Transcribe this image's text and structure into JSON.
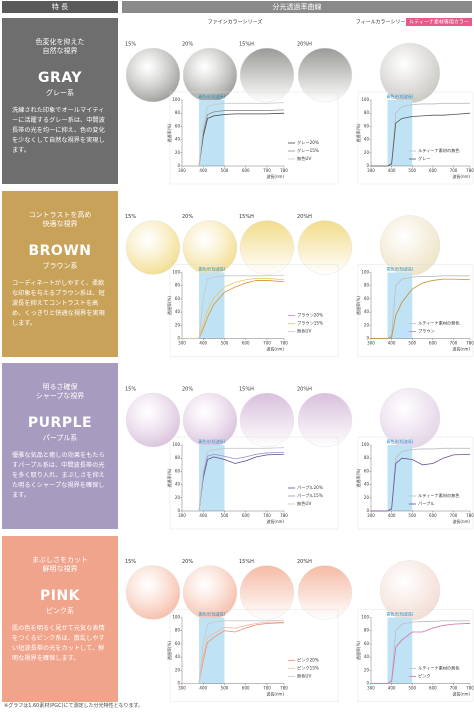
{
  "header": {
    "features": "特 長",
    "curves": "分光透過率曲線"
  },
  "series_labels": {
    "fine": "ファインカラーシリーズ",
    "feel": "フィールカラーシリーズ",
    "badge": "ルティーナ素材専用カラー"
  },
  "lens_labels": [
    "15%",
    "20%",
    "15%H",
    "20%H"
  ],
  "axes": {
    "xlim": [
      300,
      780
    ],
    "ylim": [
      0,
      100
    ],
    "xticks": [
      300,
      400,
      500,
      600,
      700,
      780
    ],
    "yticks": [
      0,
      20,
      40,
      60,
      80,
      100
    ],
    "band": [
      380,
      500
    ],
    "band_label": "青色光(短波長)",
    "ylabel": "透過率(%)",
    "xlabel": "波長(nm)"
  },
  "x": [
    300,
    380,
    400,
    420,
    450,
    500,
    550,
    600,
    650,
    700,
    780
  ],
  "sections": [
    {
      "color": "#6e6e6e",
      "lens_color": "#9a9a96",
      "feel_lens_color": "#c9c7c2",
      "headline": [
        "色変化を抑えた",
        "自然な視界"
      ],
      "name": "GRAY",
      "name_jp": "グレー系",
      "description": "洗練された印象でオールマイティーに活躍するグレー系は、中間波長帯の光を均一に抑え、色の変化を少なくして自然な視界を実現します。",
      "fine": {
        "series": [
          {
            "name": "グレー20%",
            "color": "#444444",
            "values": [
              0,
              0,
              45,
              72,
              76,
              78,
              79,
              79,
              79,
              79,
              80
            ]
          },
          {
            "name": "グレー15%",
            "color": "#8c8c8c",
            "values": [
              0,
              0,
              50,
              78,
              82,
              84,
              84,
              84,
              84,
              84,
              85
            ]
          },
          {
            "name": "無色UV",
            "color": "#c8c8c8",
            "values": [
              0,
              0,
              60,
              90,
              93,
              95,
              95,
              95,
              95,
              95,
              96
            ]
          }
        ]
      },
      "feel": {
        "series": [
          {
            "name": "ルティーナ素材の無色",
            "color": "#bdbdbd",
            "values": [
              0,
              0,
              5,
              80,
              90,
              93,
              94,
              94,
              95,
              95,
              95
            ]
          },
          {
            "name": "グレー",
            "color": "#555555",
            "values": [
              0,
              0,
              3,
              65,
              72,
              75,
              76,
              77,
              77,
              78,
              80
            ]
          }
        ]
      }
    },
    {
      "color": "#c9a25a",
      "lens_color": "#f2dc8a",
      "feel_lens_color": "#eee3c6",
      "headline": [
        "コントラストを高め",
        "快適な視界"
      ],
      "name": "BROWN",
      "name_jp": "ブラウン系",
      "description": "コーディネートがしやすく、柔軟な印象を与えるブラウン系は、短波長を抑えてコントラストを高め、くっきりと快適な視界を実現します。",
      "fine": {
        "series": [
          {
            "name": "ブラウン20%",
            "color": "#d8952a",
            "values": [
              0,
              0,
              15,
              32,
              52,
              70,
              78,
              84,
              88,
              88,
              86
            ]
          },
          {
            "name": "ブラウン15%",
            "color": "#ebc56c",
            "values": [
              0,
              0,
              22,
              42,
              62,
              78,
              85,
              89,
              91,
              91,
              89
            ]
          },
          {
            "name": "無色UV",
            "color": "#c8c8c8",
            "values": [
              0,
              0,
              60,
              90,
              93,
              95,
              95,
              95,
              95,
              95,
              96
            ]
          }
        ]
      },
      "feel": {
        "series": [
          {
            "name": "ルティーナ素材の無色",
            "color": "#bdbdbd",
            "values": [
              0,
              0,
              5,
              80,
              90,
              93,
              94,
              94,
              95,
              95,
              95
            ]
          },
          {
            "name": "ブラウン",
            "color": "#c98c32",
            "values": [
              0,
              0,
              2,
              35,
              55,
              75,
              84,
              88,
              90,
              90,
              89
            ]
          }
        ]
      }
    },
    {
      "color": "#a79bbf",
      "lens_color": "#d9bfdc",
      "feel_lens_color": "#e3d3e6",
      "headline": [
        "明るさ確保",
        "シャープな視界"
      ],
      "name": "PURPLE",
      "name_jp": "パープル系",
      "description": "優雅な気品と癒しの効果をもたらすパープル系は、中間波長帯の光を多く取り入れ、まぶしさを抑えた明るくシャープな視界を確保します。",
      "fine": {
        "series": [
          {
            "name": "パープル20%",
            "color": "#5c4a90",
            "values": [
              0,
              0,
              50,
              78,
              82,
              78,
              72,
              76,
              82,
              85,
              86
            ]
          },
          {
            "name": "パープル15%",
            "color": "#9d8fc2",
            "values": [
              0,
              0,
              55,
              83,
              86,
              83,
              79,
              82,
              86,
              88,
              89
            ]
          },
          {
            "name": "無色UV",
            "color": "#c8c8c8",
            "values": [
              0,
              0,
              60,
              90,
              93,
              95,
              95,
              95,
              95,
              95,
              96
            ]
          }
        ]
      },
      "feel": {
        "series": [
          {
            "name": "ルティーナ素材の無色",
            "color": "#bdbdbd",
            "values": [
              0,
              0,
              5,
              80,
              90,
              93,
              94,
              94,
              95,
              95,
              95
            ]
          },
          {
            "name": "パープル",
            "color": "#6a4f98",
            "values": [
              0,
              0,
              3,
              72,
              80,
              78,
              70,
              72,
              80,
              85,
              86
            ]
          }
        ]
      }
    },
    {
      "color": "#f1a48c",
      "lens_color": "#f5bba5",
      "feel_lens_color": "#f3dcd3",
      "headline": [
        "まぶしさをカット",
        "鮮明な視界"
      ],
      "name": "PINK",
      "name_jp": "ピンク系",
      "description": "肌の色を明るく見せて元気な表情をつくるピンク系は、散乱しやすい短波長帯の光をカットして、鮮明な視界を確保します。",
      "fine": {
        "series": [
          {
            "name": "ピンク20%",
            "color": "#ef8e76",
            "values": [
              0,
              0,
              35,
              62,
              70,
              80,
              78,
              84,
              89,
              91,
              92
            ]
          },
          {
            "name": "ピンク15%",
            "color": "#f5b9a5",
            "values": [
              0,
              0,
              42,
              70,
              76,
              85,
              84,
              88,
              91,
              93,
              93
            ]
          },
          {
            "name": "無色UV",
            "color": "#c8c8c8",
            "values": [
              0,
              0,
              60,
              90,
              93,
              95,
              95,
              95,
              95,
              95,
              96
            ]
          }
        ]
      },
      "feel": {
        "series": [
          {
            "name": "ルティーナ素材の無色",
            "color": "#bdbdbd",
            "values": [
              0,
              0,
              5,
              80,
              90,
              93,
              94,
              94,
              95,
              95,
              95
            ]
          },
          {
            "name": "ピンク",
            "color": "#d86fa6",
            "values": [
              0,
              0,
              3,
              55,
              66,
              78,
              78,
              84,
              88,
              90,
              91
            ]
          }
        ]
      }
    }
  ],
  "footnote": "※グラフは1.60素材(PGC)にて測定した分光特性となります。"
}
